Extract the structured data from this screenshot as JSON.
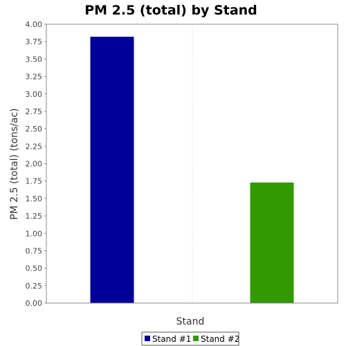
{
  "chart_data": {
    "type": "bar",
    "title": "PM 2.5 (total) by Stand",
    "xlabel": "Stand",
    "ylabel": "PM 2.5 (total) (tons/ac)",
    "ylim": [
      0,
      4.0
    ],
    "yticks": [
      "0.00",
      "0.25",
      "0.50",
      "0.75",
      "1.00",
      "1.25",
      "1.50",
      "1.75",
      "2.00",
      "2.25",
      "2.50",
      "2.75",
      "3.00",
      "3.25",
      "3.50",
      "3.75",
      "4.00"
    ],
    "series": [
      {
        "name": "Stand #1",
        "values": [
          3.82
        ],
        "color": "#000099"
      },
      {
        "name": "Stand #2",
        "values": [
          1.73
        ],
        "color": "#339900"
      }
    ],
    "grid": true,
    "legend": "bottom"
  }
}
